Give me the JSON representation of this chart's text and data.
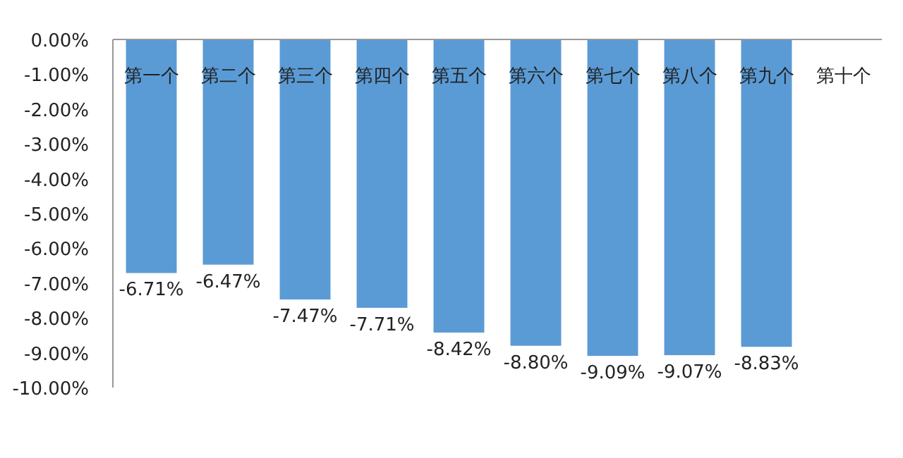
{
  "chart_data": {
    "type": "bar",
    "categories": [
      "第一个",
      "第二个",
      "第三个",
      "第四个",
      "第五个",
      "第六个",
      "第七个",
      "第八个",
      "第九个",
      "第十个"
    ],
    "values": [
      -6.71,
      -6.47,
      -7.47,
      -7.71,
      -8.42,
      -8.8,
      -9.09,
      -9.07,
      -8.83,
      null
    ],
    "value_labels": [
      "-6.71%",
      "-6.47%",
      "-7.47%",
      "-7.71%",
      "-8.42%",
      "-8.80%",
      "-9.09%",
      "-9.07%",
      "-8.83%",
      null
    ],
    "color": "#5b9bd5",
    "ylim": [
      -10,
      0
    ],
    "yticks": [
      {
        "value": 0,
        "label": "0.00%"
      },
      {
        "value": -1,
        "label": "-1.00%"
      },
      {
        "value": -2,
        "label": "-2.00%"
      },
      {
        "value": -3,
        "label": "-3.00%"
      },
      {
        "value": -4,
        "label": "-4.00%"
      },
      {
        "value": -5,
        "label": "-5.00%"
      },
      {
        "value": -6,
        "label": "-6.00%"
      },
      {
        "value": -7,
        "label": "-7.00%"
      },
      {
        "value": -8,
        "label": "-8.00%"
      },
      {
        "value": -9,
        "label": "-9.00%"
      },
      {
        "value": -10,
        "label": "-10.00%"
      }
    ]
  }
}
